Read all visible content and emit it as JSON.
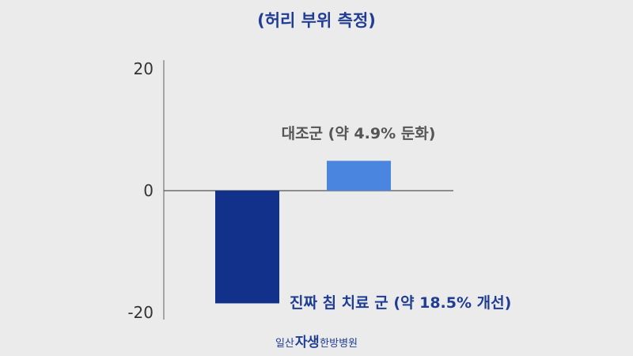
{
  "chart_data": {
    "type": "bar",
    "title": "(허리 부위 측정)",
    "categories": [
      "진짜 침 치료 군",
      "대조군"
    ],
    "series": [
      {
        "values": [
          -18.5,
          4.9
        ]
      }
    ],
    "data_labels": [
      "진짜 침 치료 군 (약 18.5% 개선)",
      "대조군 (약 4.9% 둔화)"
    ],
    "bar_colors": [
      "#12318a",
      "#4a85e0"
    ],
    "label_colors": [
      "#1f3d94",
      "#555555"
    ],
    "yticks": [
      "20",
      "0",
      "-20"
    ],
    "ylim": [
      -20,
      20
    ],
    "grid": false
  },
  "footer": {
    "brand_prefix": "일산",
    "brand_main": "자생",
    "brand_suffix": "한방병원"
  }
}
